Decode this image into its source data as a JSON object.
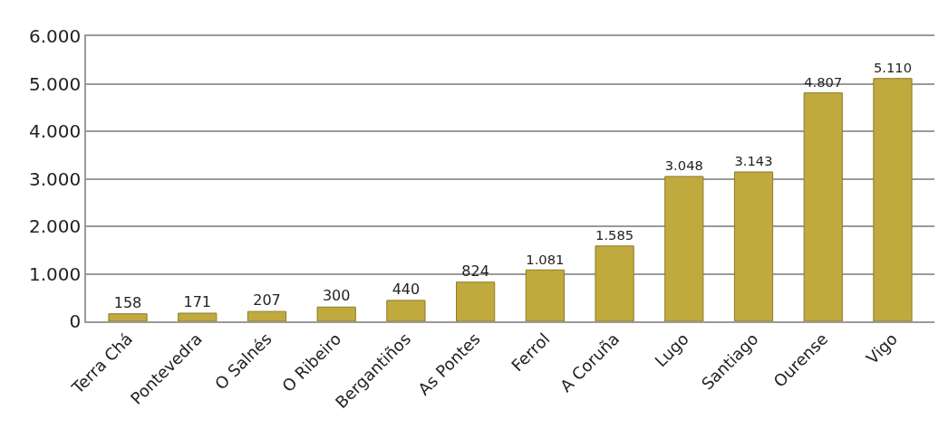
{
  "chart_data": {
    "type": "bar",
    "categories": [
      "Terra Chá",
      "Pontevedra",
      "O Salnés",
      "O Ribeiro",
      "Bergantiños",
      "As Pontes",
      "Ferrol",
      "A Coruña",
      "Lugo",
      "Santiago",
      "Ourense",
      "Vigo"
    ],
    "values": [
      158,
      171,
      207,
      300,
      440,
      824,
      1081,
      1585,
      3048,
      3143,
      4807,
      5110
    ],
    "value_labels": [
      "158",
      "171",
      "207",
      "300",
      "440",
      "824",
      "1.081",
      "1.585",
      "3.048",
      "3.143",
      "4.807",
      "5.110"
    ],
    "color": "#c0aa3e",
    "ylim": [
      0,
      6000
    ],
    "yticks": [
      0,
      {
        "value": 1000,
        "label": "1.000"
      },
      {
        "value": 2000,
        "label": "2.000"
      },
      {
        "value": 3000,
        "label": "3.000"
      },
      {
        "value": 4000,
        "label": "4.000"
      },
      {
        "value": 5000,
        "label": "5.000"
      },
      {
        "value": 6000,
        "label": "6.000"
      }
    ],
    "grid": "y",
    "legend": false
  }
}
